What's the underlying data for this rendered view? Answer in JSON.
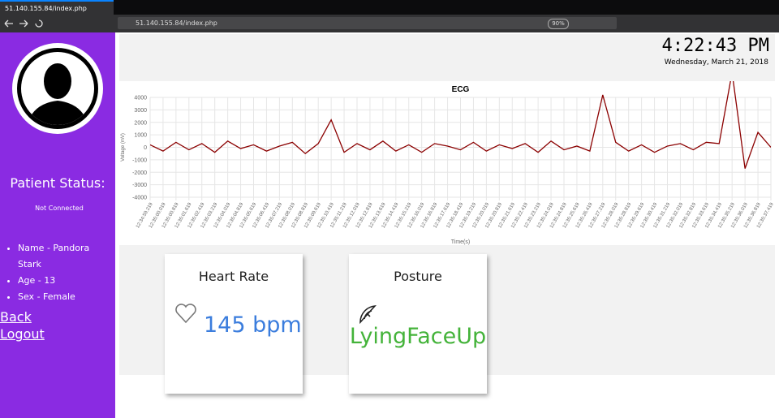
{
  "browser": {
    "tab_title": "51.140.155.84/index.php",
    "url": "51.140.155.84/index.php",
    "zoom": "90%"
  },
  "sidebar": {
    "heading": "Patient Status:",
    "status": "Not Connected",
    "details": [
      "Name - Pandora Stark",
      "Age - 13",
      "Sex - Female"
    ],
    "links": [
      "Back",
      "Logout"
    ]
  },
  "clock": {
    "time": "4:22:43 PM",
    "date": "Wednesday, March 21, 2018"
  },
  "chart_data": {
    "type": "line",
    "title": "ECG",
    "x_label": "Time(s)",
    "y_label": "Voltage (mV)",
    "color": "#8b0000",
    "grid": true,
    "ylim": [
      -4000,
      4000
    ],
    "yticks": [
      -4000,
      -3000,
      -2000,
      -1000,
      0,
      1000,
      2000,
      3000,
      4000
    ],
    "categories": [
      "12:34:59.219",
      "12:35:00.019",
      "12:35:00.819",
      "12:35:01.619",
      "12:35:02.419",
      "12:35:03.219",
      "12:35:04.019",
      "12:35:04.819",
      "12:35:05.619",
      "12:35:06.419",
      "12:35:07.219",
      "12:35:08.019",
      "12:35:08.819",
      "12:35:09.619",
      "12:35:10.419",
      "12:35:11.219",
      "12:35:12.019",
      "12:35:12.819",
      "12:35:13.619",
      "12:35:14.419",
      "12:35:15.219",
      "12:35:16.019",
      "12:35:16.819",
      "12:35:17.619",
      "12:35:18.419",
      "12:35:19.219",
      "12:35:20.019",
      "12:35:20.819",
      "12:35:21.619",
      "12:35:22.419",
      "12:35:23.219",
      "12:35:24.019",
      "12:35:24.819",
      "12:35:25.619",
      "12:35:26.419",
      "12:35:27.219",
      "12:35:28.019",
      "12:35:28.819",
      "12:35:29.619",
      "12:35:30.419",
      "12:35:31.219",
      "12:35:32.019",
      "12:35:32.819",
      "12:35:33.619",
      "12:35:34.419",
      "12:35:35.219",
      "12:35:36.019",
      "12:35:36.819",
      "12:35:37.419"
    ],
    "series": [
      {
        "name": "ECG",
        "color": "#8b0000",
        "values": [
          200,
          -300,
          400,
          -200,
          300,
          -400,
          500,
          -100,
          200,
          -300,
          100,
          400,
          -500,
          300,
          2200,
          -400,
          300,
          -200,
          500,
          -300,
          200,
          -400,
          300,
          100,
          -200,
          400,
          -300,
          200,
          -100,
          300,
          -400,
          500,
          -200,
          100,
          -300,
          4200,
          400,
          -300,
          200,
          -400,
          100,
          300,
          -200,
          400,
          300,
          6000,
          -1700,
          1200,
          0
        ]
      }
    ]
  },
  "cards": [
    {
      "title": "Heart Rate",
      "value": "145 bpm"
    },
    {
      "title": "Posture",
      "value": "LyingFaceUp"
    }
  ]
}
